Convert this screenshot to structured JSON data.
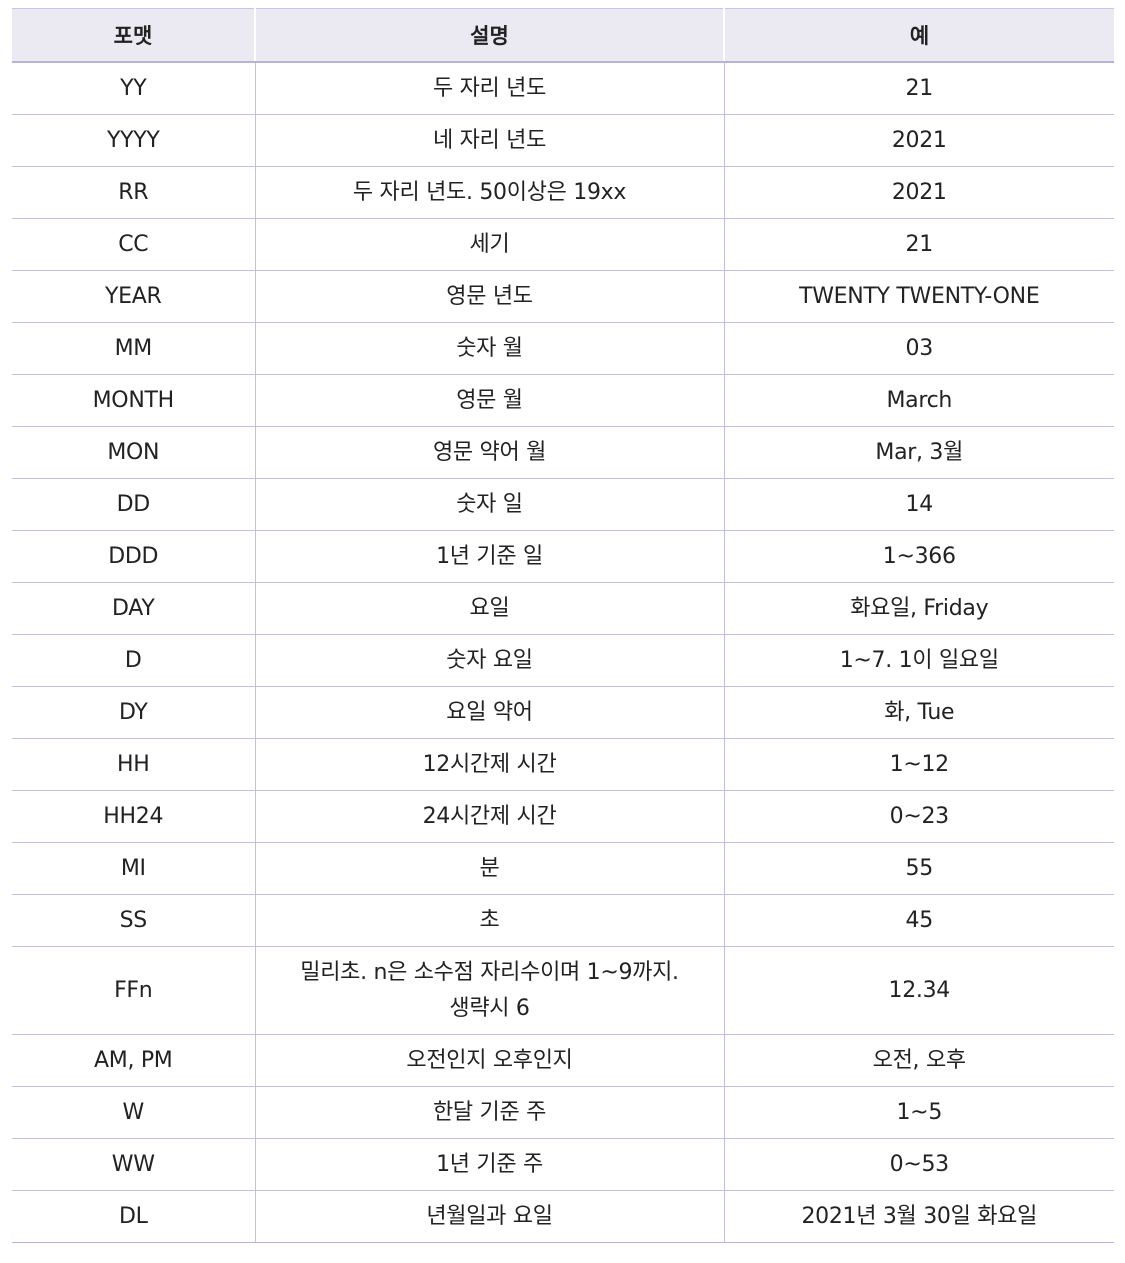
{
  "headers": [
    "포맷",
    "설명",
    "예"
  ],
  "rows": [
    {
      "format": "YY",
      "desc": "두 자리 년도",
      "example": "21"
    },
    {
      "format": "YYYY",
      "desc": "네 자리 년도",
      "example": "2021"
    },
    {
      "format": "RR",
      "desc": "두 자리 년도. 50이상은 19xx",
      "example": "2021"
    },
    {
      "format": "CC",
      "desc": "세기",
      "example": "21"
    },
    {
      "format": "YEAR",
      "desc": "영문 년도",
      "example": "TWENTY TWENTY-ONE"
    },
    {
      "format": "MM",
      "desc": "숫자 월",
      "example": "03"
    },
    {
      "format": "MONTH",
      "desc": "영문 월",
      "example": "March"
    },
    {
      "format": "MON",
      "desc": "영문 약어 월",
      "example": "Mar, 3월"
    },
    {
      "format": "DD",
      "desc": "숫자 일",
      "example": "14"
    },
    {
      "format": "DDD",
      "desc": "1년 기준 일",
      "example": "1~366"
    },
    {
      "format": "DAY",
      "desc": "요일",
      "example": "화요일, Friday"
    },
    {
      "format": "D",
      "desc": "숫자 요일",
      "example": "1~7. 1이 일요일"
    },
    {
      "format": "DY",
      "desc": "요일 약어",
      "example": "화, Tue"
    },
    {
      "format": "HH",
      "desc": "12시간제 시간",
      "example": "1~12"
    },
    {
      "format": "HH24",
      "desc": "24시간제 시간",
      "example": "0~23"
    },
    {
      "format": "MI",
      "desc": "분",
      "example": "55"
    },
    {
      "format": "SS",
      "desc": "초",
      "example": "45"
    },
    {
      "format": "FFn",
      "desc_lines": [
        "밀리초. n은 소수점 자리수이며 1~9까지.",
        "생략시 6"
      ],
      "example": "12.34"
    },
    {
      "format": "AM, PM",
      "desc": "오전인지 오후인지",
      "example": "오전, 오후"
    },
    {
      "format": "W",
      "desc": "한달 기준 주",
      "example": "1~5"
    },
    {
      "format": "WW",
      "desc": "1년 기준 주",
      "example": "0~53"
    },
    {
      "format": "DL",
      "desc": "년월일과 요일",
      "example": "2021년 3월 30일 화요일"
    }
  ]
}
